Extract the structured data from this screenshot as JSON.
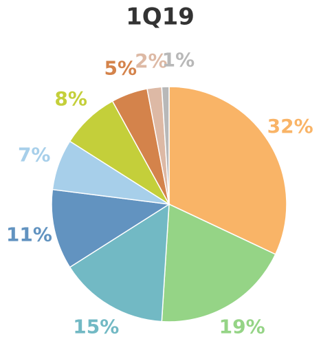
{
  "chart_data": {
    "type": "pie",
    "title": "1Q19",
    "values": [
      32,
      19,
      15,
      11,
      7,
      8,
      5,
      2,
      1
    ],
    "value_labels": [
      "32%",
      "19%",
      "15%",
      "11%",
      "7%",
      "8%",
      "5%",
      "2%",
      "1%"
    ],
    "colors": [
      "#f9b467",
      "#95d486",
      "#72b9c4",
      "#6293c0",
      "#a7cfea",
      "#c4cf3a",
      "#d4834b",
      "#ddb9a5",
      "#b8b8b8"
    ]
  }
}
